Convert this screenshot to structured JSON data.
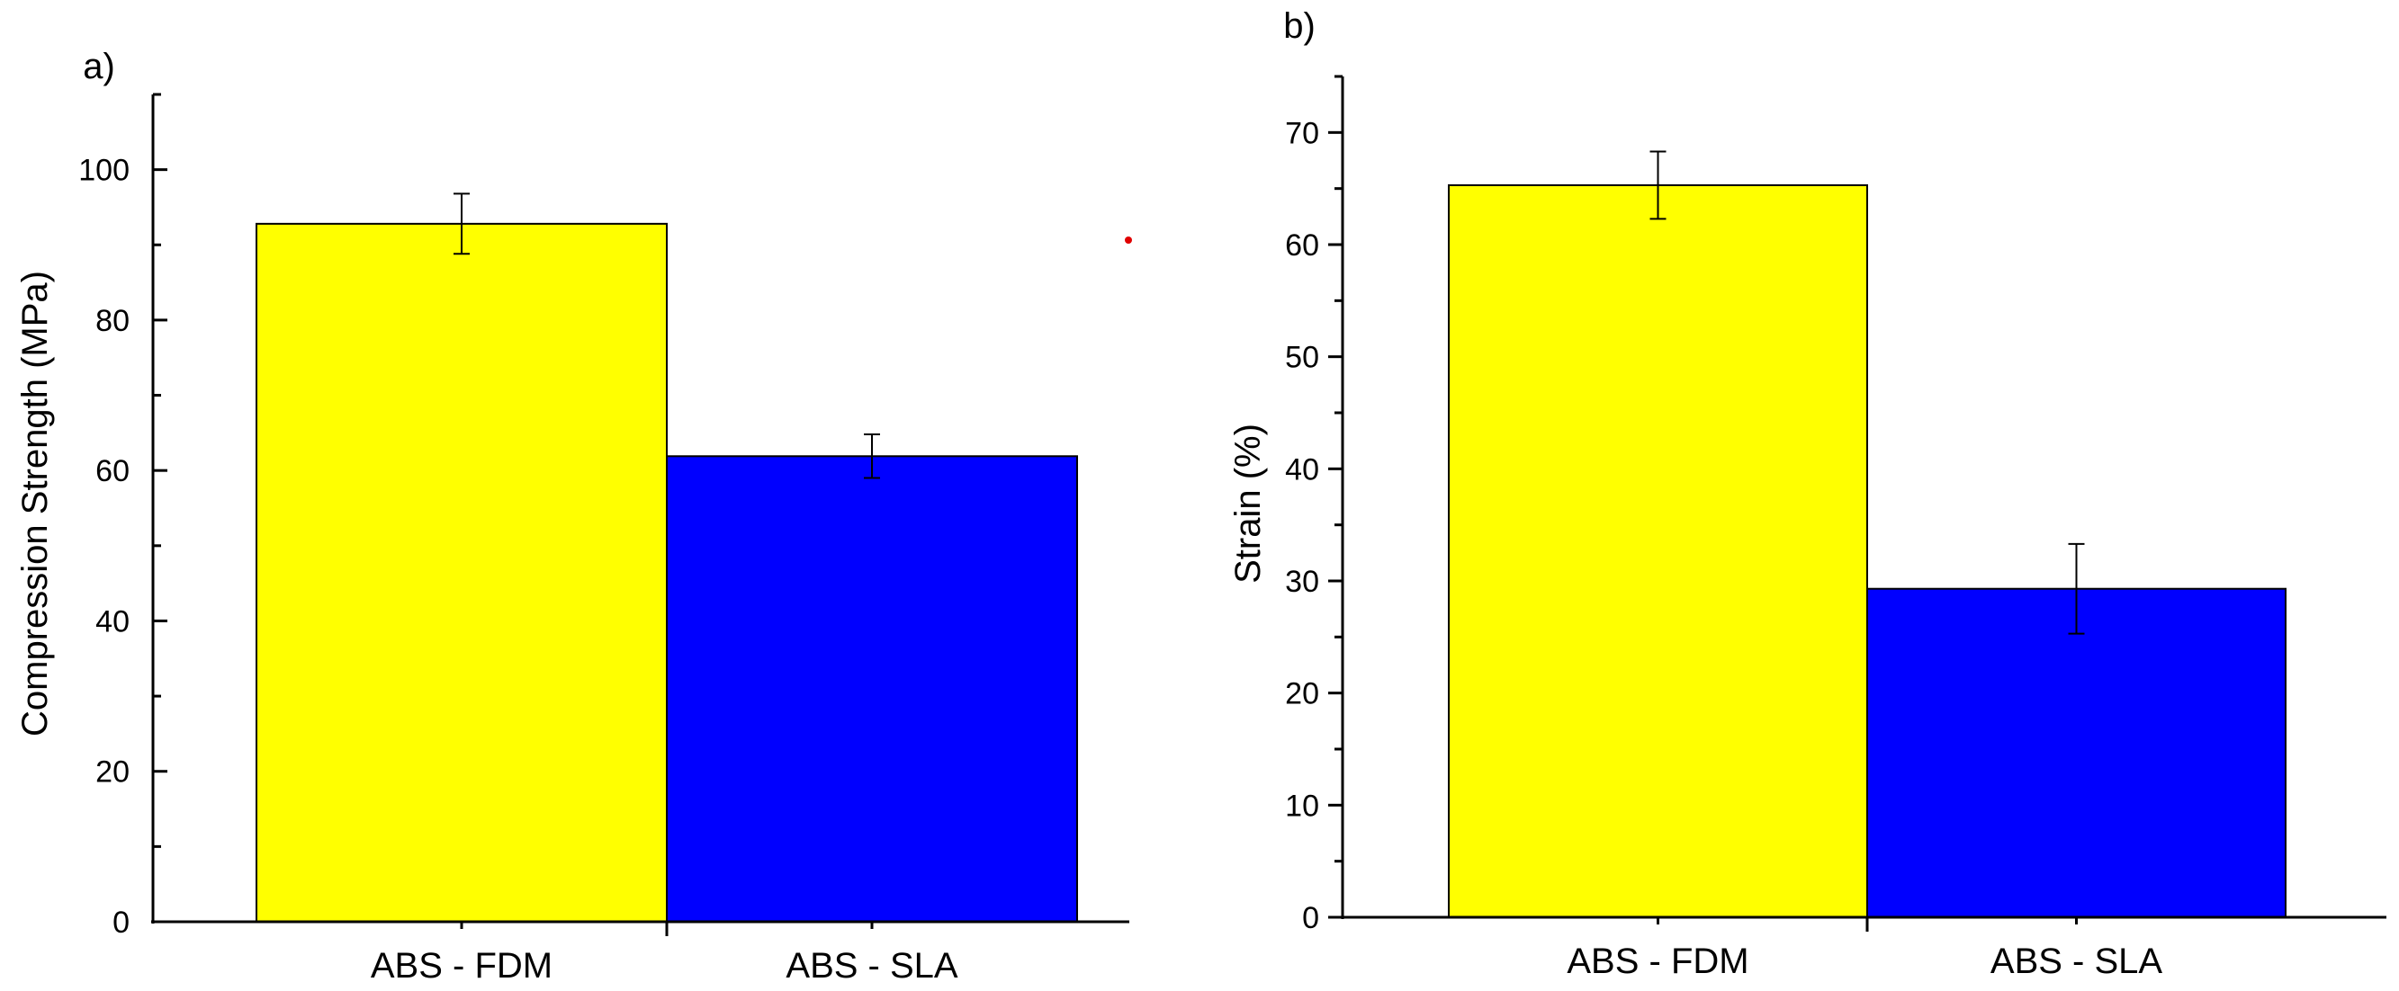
{
  "chart_data": [
    {
      "type": "bar",
      "panel_label": "a)",
      "categories": [
        "ABS - FDM",
        "ABS - SLA"
      ],
      "values": [
        92.8,
        61.9
      ],
      "errors": [
        4.0,
        2.9
      ],
      "colors": [
        "#ffff00",
        "#0000ff"
      ],
      "ylabel": "Compression Strength (MPa)",
      "xlabel": "",
      "ylim": [
        0,
        110
      ],
      "yticks": [
        0,
        20,
        40,
        60,
        80,
        100
      ],
      "grid": false,
      "legend": "none"
    },
    {
      "type": "bar",
      "panel_label": "b)",
      "categories": [
        "ABS - FDM",
        "ABS - SLA"
      ],
      "values": [
        65.3,
        29.3
      ],
      "errors": [
        3.0,
        4.0
      ],
      "colors": [
        "#ffff00",
        "#0000ff"
      ],
      "ylabel": "Strain (%)",
      "xlabel": "",
      "ylim": [
        0,
        75
      ],
      "yticks": [
        0,
        10,
        20,
        30,
        40,
        50,
        60,
        70
      ],
      "grid": false,
      "legend": "none"
    }
  ]
}
